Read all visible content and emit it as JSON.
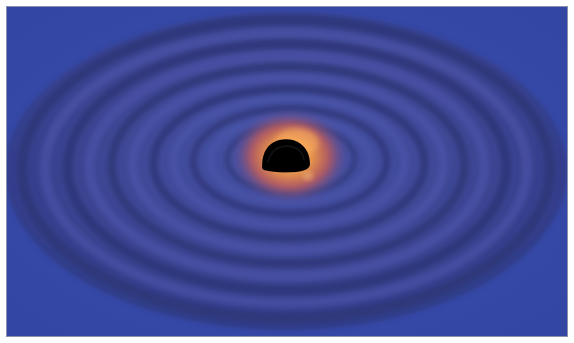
{
  "image": {
    "subject": "black-hole-with-ripples",
    "colors": {
      "background": "#3447a0",
      "ripple_dark": "#2b3470",
      "ripple_light": "#4a54a8",
      "glow_inner": "#f4a04a",
      "glow_outer": "#7a3c78",
      "core": "#000000"
    }
  }
}
